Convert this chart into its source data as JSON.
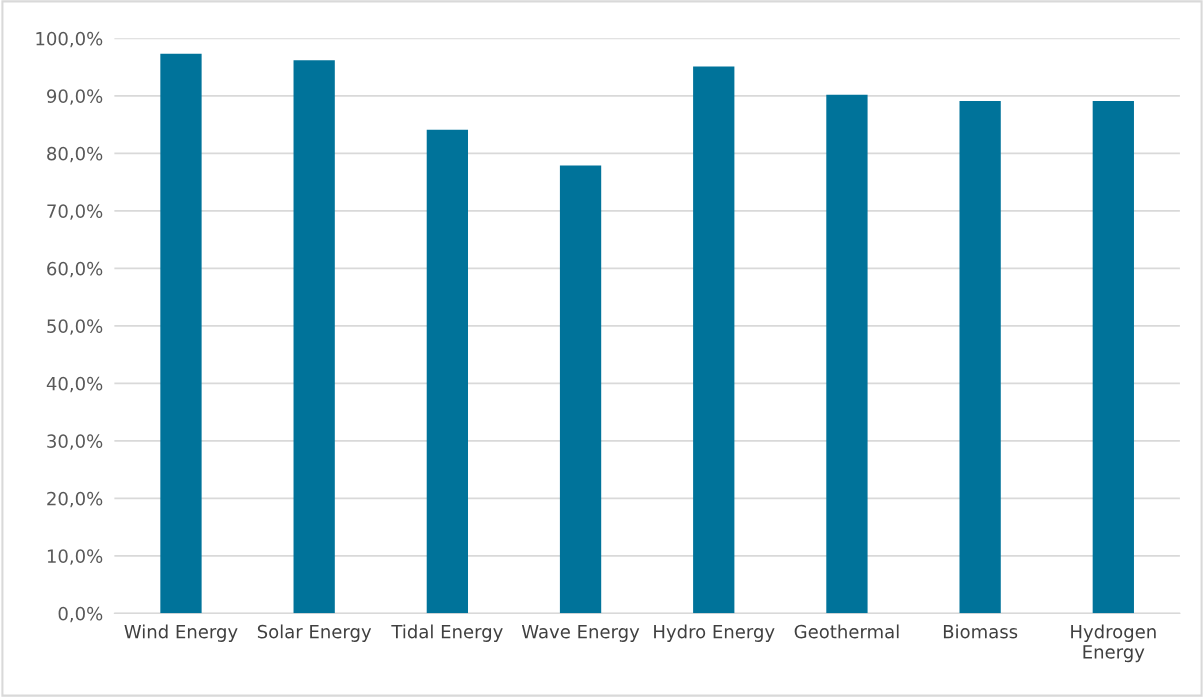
{
  "chart_data": {
    "type": "bar",
    "categories": [
      "Wind Energy",
      "Solar Energy",
      "Tidal Energy",
      "Wave Energy",
      "Hydro Energy",
      "Geothermal",
      "Biomass",
      "Hydrogen\nEnergy"
    ],
    "values": [
      97.3,
      96.2,
      84.1,
      77.9,
      95.1,
      90.2,
      89.1,
      89.1
    ],
    "color": "#00739a",
    "ylim": [
      0,
      100
    ],
    "yticks": [
      {
        "value": 0,
        "label": "0,0%"
      },
      {
        "value": 10,
        "label": "10,0%"
      },
      {
        "value": 20,
        "label": "20,0%"
      },
      {
        "value": 30,
        "label": "30,0%"
      },
      {
        "value": 40,
        "label": "40,0%"
      },
      {
        "value": 50,
        "label": "50,0%"
      },
      {
        "value": 60,
        "label": "60,0%"
      },
      {
        "value": 70,
        "label": "70,0%"
      },
      {
        "value": 80,
        "label": "80,0%"
      },
      {
        "value": 90,
        "label": "90,0%"
      },
      {
        "value": 100,
        "label": "100,0%"
      }
    ],
    "grid": "y",
    "legend": false
  }
}
